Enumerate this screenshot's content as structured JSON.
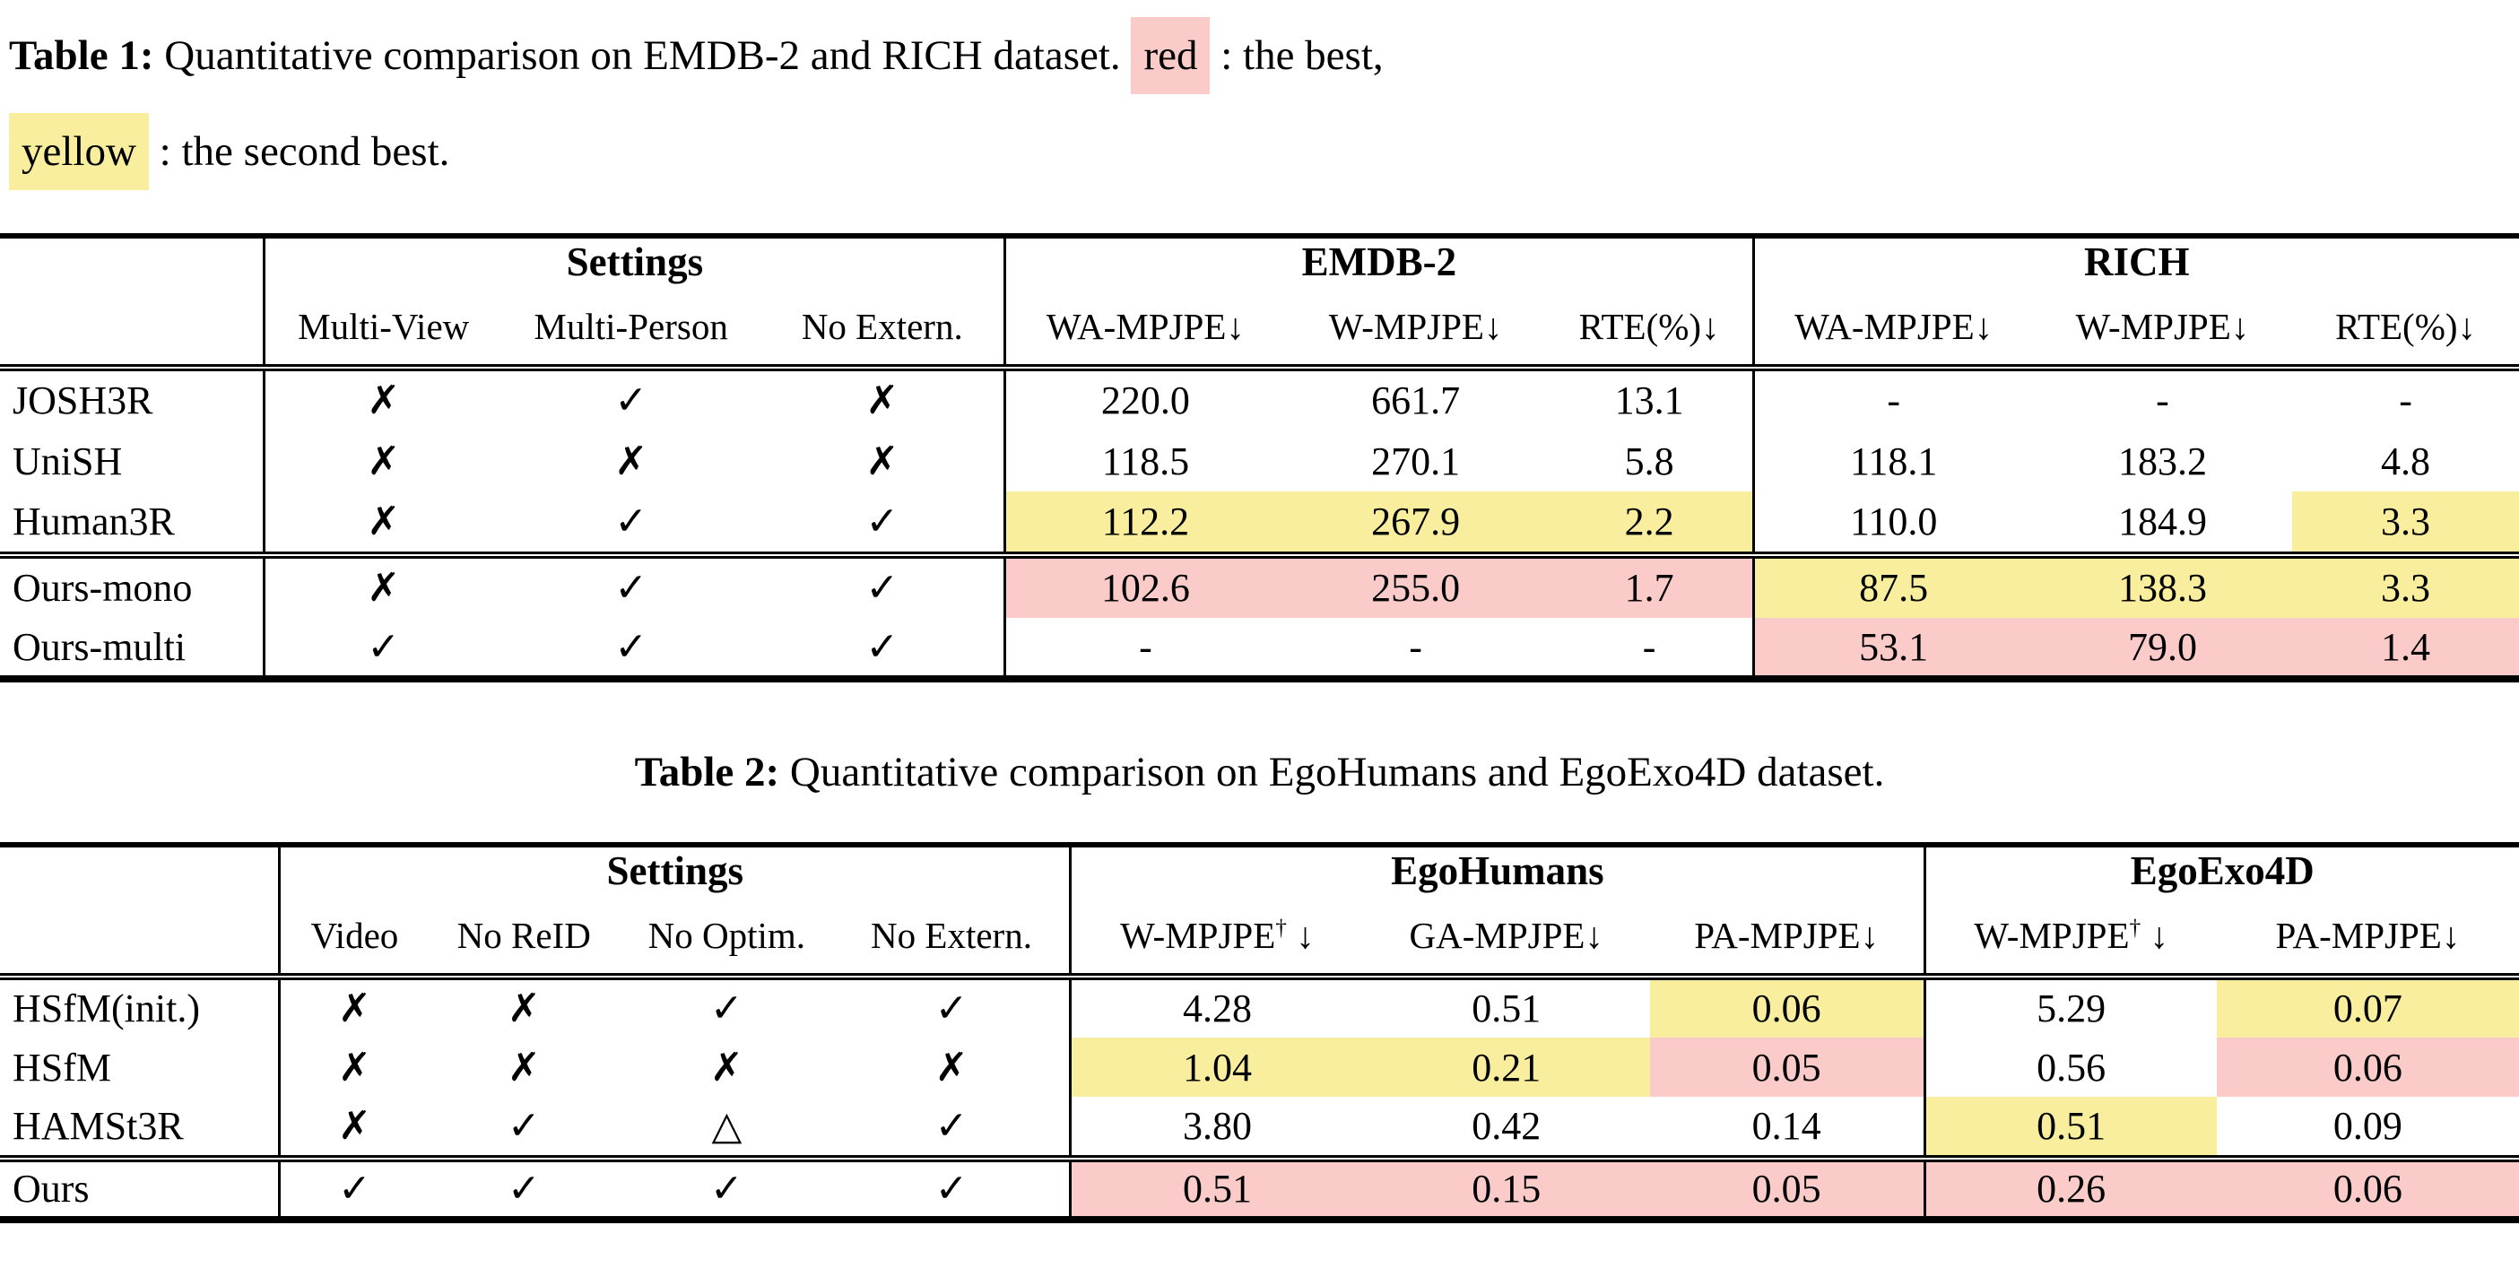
{
  "colors": {
    "best_red": "#FACBC8",
    "second_yellow": "#F8EE9D"
  },
  "table1": {
    "caption": {
      "label": "Table 1:",
      "text": " Quantitative comparison on EMDB-2 and RICH dataset. ",
      "best_word": "red",
      "best_text": " : the best,",
      "second_word": "yellow",
      "second_text": " : the second best."
    },
    "groups": [
      "Settings",
      "EMDB-2",
      "RICH"
    ],
    "columns": [
      "Multi-View",
      "Multi-Person",
      "No Extern.",
      "WA-MPJPE↓",
      "W-MPJPE↓",
      "RTE(%)↓",
      "WA-MPJPE↓",
      "W-MPJPE↓",
      "RTE(%)↓"
    ],
    "group1_rows": [
      {
        "name": "JOSH3R",
        "cells": [
          {
            "v": "✗"
          },
          {
            "v": "✓"
          },
          {
            "v": "✗"
          },
          {
            "v": "220.0"
          },
          {
            "v": "661.7"
          },
          {
            "v": "13.1"
          },
          {
            "v": "-"
          },
          {
            "v": "-"
          },
          {
            "v": "-"
          }
        ]
      },
      {
        "name": "UniSH",
        "cells": [
          {
            "v": "✗"
          },
          {
            "v": "✗"
          },
          {
            "v": "✗"
          },
          {
            "v": "118.5"
          },
          {
            "v": "270.1"
          },
          {
            "v": "5.8"
          },
          {
            "v": "118.1"
          },
          {
            "v": "183.2"
          },
          {
            "v": "4.8"
          }
        ]
      },
      {
        "name": "Human3R",
        "cells": [
          {
            "v": "✗"
          },
          {
            "v": "✓"
          },
          {
            "v": "✓"
          },
          {
            "v": "112.2",
            "hl": "second"
          },
          {
            "v": "267.9",
            "hl": "second"
          },
          {
            "v": "2.2",
            "hl": "second"
          },
          {
            "v": "110.0"
          },
          {
            "v": "184.9"
          },
          {
            "v": "3.3",
            "hl": "second"
          }
        ]
      }
    ],
    "group2_rows": [
      {
        "name": "Ours-mono",
        "cells": [
          {
            "v": "✗"
          },
          {
            "v": "✓"
          },
          {
            "v": "✓"
          },
          {
            "v": "102.6",
            "hl": "best"
          },
          {
            "v": "255.0",
            "hl": "best"
          },
          {
            "v": "1.7",
            "hl": "best"
          },
          {
            "v": "87.5",
            "hl": "second"
          },
          {
            "v": "138.3",
            "hl": "second"
          },
          {
            "v": "3.3",
            "hl": "second"
          }
        ]
      },
      {
        "name": "Ours-multi",
        "cells": [
          {
            "v": "✓"
          },
          {
            "v": "✓"
          },
          {
            "v": "✓"
          },
          {
            "v": "-"
          },
          {
            "v": "-"
          },
          {
            "v": "-"
          },
          {
            "v": "53.1",
            "hl": "best"
          },
          {
            "v": "79.0",
            "hl": "best"
          },
          {
            "v": "1.4",
            "hl": "best"
          }
        ]
      }
    ]
  },
  "table2": {
    "caption": {
      "label": "Table 2:",
      "text": " Quantitative comparison on EgoHumans and EgoExo4D dataset."
    },
    "groups": [
      "Settings",
      "EgoHumans",
      "EgoExo4D"
    ],
    "columns": [
      "Video",
      "No ReID",
      "No Optim.",
      "No Extern.",
      {
        "label": "W-MPJPE",
        "sup": "†",
        "arrow": " ↓"
      },
      "GA-MPJPE↓",
      "PA-MPJPE↓",
      {
        "label": "W-MPJPE",
        "sup": "†",
        "arrow": " ↓"
      },
      "PA-MPJPE↓"
    ],
    "group1_rows": [
      {
        "name": "HSfM(init.)",
        "cells": [
          {
            "v": "✗"
          },
          {
            "v": "✗"
          },
          {
            "v": "✓"
          },
          {
            "v": "✓"
          },
          {
            "v": "4.28"
          },
          {
            "v": "0.51"
          },
          {
            "v": "0.06",
            "hl": "second"
          },
          {
            "v": "5.29"
          },
          {
            "v": "0.07",
            "hl": "second"
          }
        ]
      },
      {
        "name": "HSfM",
        "cells": [
          {
            "v": "✗"
          },
          {
            "v": "✗"
          },
          {
            "v": "✗"
          },
          {
            "v": "✗"
          },
          {
            "v": "1.04",
            "hl": "second"
          },
          {
            "v": "0.21",
            "hl": "second"
          },
          {
            "v": "0.05",
            "hl": "best"
          },
          {
            "v": "0.56"
          },
          {
            "v": "0.06",
            "hl": "best"
          }
        ]
      },
      {
        "name": "HAMSt3R",
        "cells": [
          {
            "v": "✗"
          },
          {
            "v": "✓"
          },
          {
            "v": "△"
          },
          {
            "v": "✓"
          },
          {
            "v": "3.80"
          },
          {
            "v": "0.42"
          },
          {
            "v": "0.14"
          },
          {
            "v": "0.51",
            "hl": "second"
          },
          {
            "v": "0.09"
          }
        ]
      }
    ],
    "group2_rows": [
      {
        "name": "Ours",
        "cells": [
          {
            "v": "✓"
          },
          {
            "v": "✓"
          },
          {
            "v": "✓"
          },
          {
            "v": "✓"
          },
          {
            "v": "0.51",
            "hl": "best"
          },
          {
            "v": "0.15",
            "hl": "best"
          },
          {
            "v": "0.05",
            "hl": "best"
          },
          {
            "v": "0.26",
            "hl": "best"
          },
          {
            "v": "0.06",
            "hl": "best"
          }
        ]
      }
    ]
  }
}
